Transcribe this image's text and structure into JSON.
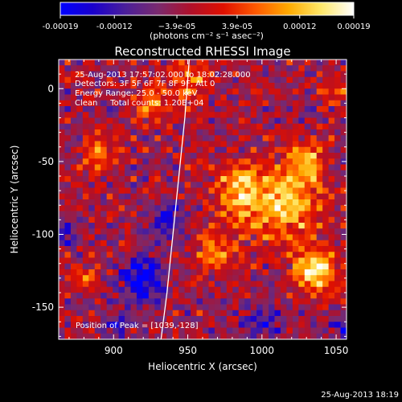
{
  "chart_data": {
    "type": "heatmap",
    "title": "Reconstructed RHESSI Image",
    "xlabel": "Heliocentric X (arcsec)",
    "ylabel": "Heliocentric Y (arcsec)",
    "xlim": [
      863,
      1057
    ],
    "ylim": [
      -172,
      20
    ],
    "x_ticks": [
      900,
      950,
      1000,
      1050
    ],
    "y_ticks": [
      0,
      -50,
      -100,
      -150
    ],
    "colorbar": {
      "range": [
        -0.00019,
        0.00019
      ],
      "tick_values": [
        -0.00019,
        -0.00012,
        -3.9e-05,
        3.9e-05,
        0.00012,
        0.00019
      ],
      "tick_labels": [
        "-0.00019",
        "-0.00012",
        "−3.9e-05",
        "3.9e-05",
        "0.00012",
        "0.00019"
      ],
      "unit": "(photons cm⁻² s⁻¹ asec⁻²)",
      "stops": [
        "#0000ff",
        "#1a00cc",
        "#4b1f9a",
        "#7a2a6e",
        "#b0102a",
        "#e01000",
        "#ff5a00",
        "#ffaa00",
        "#ffe86a",
        "#ffffff"
      ]
    },
    "info_lines": [
      "25-Aug-2013 17:57:02.000 to 18:02:28.000",
      "Detectors: 3F 5F 6F 7F 8F 9F, Att 0",
      "Energy Range: 25.0 - 50.0 keV",
      "Clean     Total counts: 1.20E+04"
    ],
    "peak_label": "Position of Peak = [1039,-128]",
    "peak_position": [
      1039,
      -128
    ],
    "limb_curve": [
      [
        951,
        20
      ],
      [
        948,
        -20
      ],
      [
        944,
        -60
      ],
      [
        940,
        -100
      ],
      [
        936,
        -140
      ],
      [
        932,
        -172
      ]
    ],
    "intensity_grid": {
      "nx": 48,
      "ny": 48,
      "blobs": [
        {
          "x": 1035,
          "y": -125,
          "r": 14,
          "a": 1.0
        },
        {
          "x": 1015,
          "y": -80,
          "r": 24,
          "a": 0.85
        },
        {
          "x": 985,
          "y": -70,
          "r": 18,
          "a": 0.7
        },
        {
          "x": 1030,
          "y": -50,
          "r": 14,
          "a": 0.7
        },
        {
          "x": 970,
          "y": -110,
          "r": 14,
          "a": 0.6
        },
        {
          "x": 950,
          "y": 5,
          "r": 12,
          "a": 0.6
        },
        {
          "x": 925,
          "y": -10,
          "r": 12,
          "a": 0.55
        },
        {
          "x": 890,
          "y": -45,
          "r": 12,
          "a": 0.5
        },
        {
          "x": 880,
          "y": -130,
          "r": 7,
          "a": 0.55
        },
        {
          "x": 1050,
          "y": 0,
          "r": 10,
          "a": 0.35
        },
        {
          "x": 920,
          "y": -130,
          "r": 14,
          "a": -0.9
        },
        {
          "x": 935,
          "y": -90,
          "r": 12,
          "a": -0.6
        },
        {
          "x": 1000,
          "y": -160,
          "r": 12,
          "a": -0.5
        },
        {
          "x": 870,
          "y": -100,
          "r": 9,
          "a": -0.45
        },
        {
          "x": 1055,
          "y": -165,
          "r": 8,
          "a": -0.5
        },
        {
          "x": 905,
          "y": -160,
          "r": 10,
          "a": -0.45
        }
      ],
      "baseline": -0.18
    }
  },
  "footer": {
    "timestamp": "25-Aug-2013 18:19"
  }
}
